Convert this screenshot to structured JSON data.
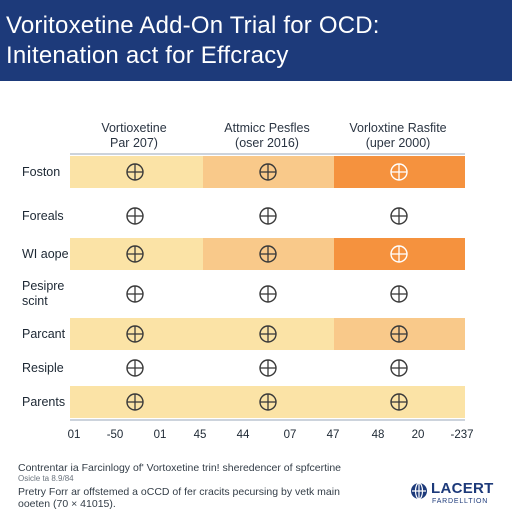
{
  "header": {
    "title_line1": "Voritoxetine Add-On Trial for OCD:",
    "title_line2": "Initenation act for Effcracy",
    "background": "#1d3a7a"
  },
  "chart_data": {
    "type": "heatmap",
    "columns": [
      {
        "line1": "Vortioxetine",
        "line2": "Par 207)"
      },
      {
        "line1": "Attmicc Pesfles",
        "line2": "(oser 2016)"
      },
      {
        "line1": "Vorloxtine Rasfite",
        "line2": "(uper 2000)"
      }
    ],
    "rows": [
      {
        "label_lines": [
          "Foston"
        ],
        "band": true,
        "shades": [
          "light",
          "medium",
          "strong"
        ]
      },
      {
        "label_lines": [
          "Foreals"
        ],
        "band": false,
        "shades": [
          "none",
          "none",
          "none"
        ]
      },
      {
        "label_lines": [
          "WI aope"
        ],
        "band": true,
        "shades": [
          "light",
          "medium",
          "strong"
        ]
      },
      {
        "label_lines": [
          "Pesipre",
          "scint"
        ],
        "band": false,
        "shades": [
          "none",
          "none",
          "none"
        ]
      },
      {
        "label_lines": [
          "Parcant"
        ],
        "band": true,
        "shades": [
          "light",
          "light",
          "medium"
        ]
      },
      {
        "label_lines": [
          "Resiple"
        ],
        "band": false,
        "shades": [
          "none",
          "none",
          "none"
        ]
      },
      {
        "label_lines": [
          "Parents"
        ],
        "band": true,
        "shades": [
          "light",
          "light",
          "light"
        ]
      }
    ],
    "x_ticks": [
      "01",
      "-50",
      "01",
      "45",
      "44",
      "07",
      "47",
      "48",
      "20",
      "-237"
    ],
    "colors": {
      "light": "#fbe3a6",
      "medium": "#f9c98a",
      "strong": "#f5923e",
      "none": "#ffffff",
      "symbol": "#3a3a3a",
      "divider": "#9aa7b8"
    },
    "legend": "none",
    "grid": false
  },
  "footer": {
    "line1": "Contrentar ia Farcinlogy of' Vortoxetine trin! sheredencer of spfcertine",
    "line2": "Osicle ta 8.9/84",
    "line3": "Pretry Forr ar offstemed a oCCD of fer cracits pecursing by vetk main",
    "line4": "ooeten (70 × 41015)."
  },
  "logo": {
    "name": "LACERT",
    "subtitle": "FARDELLTION",
    "color": "#1d3a7a"
  }
}
